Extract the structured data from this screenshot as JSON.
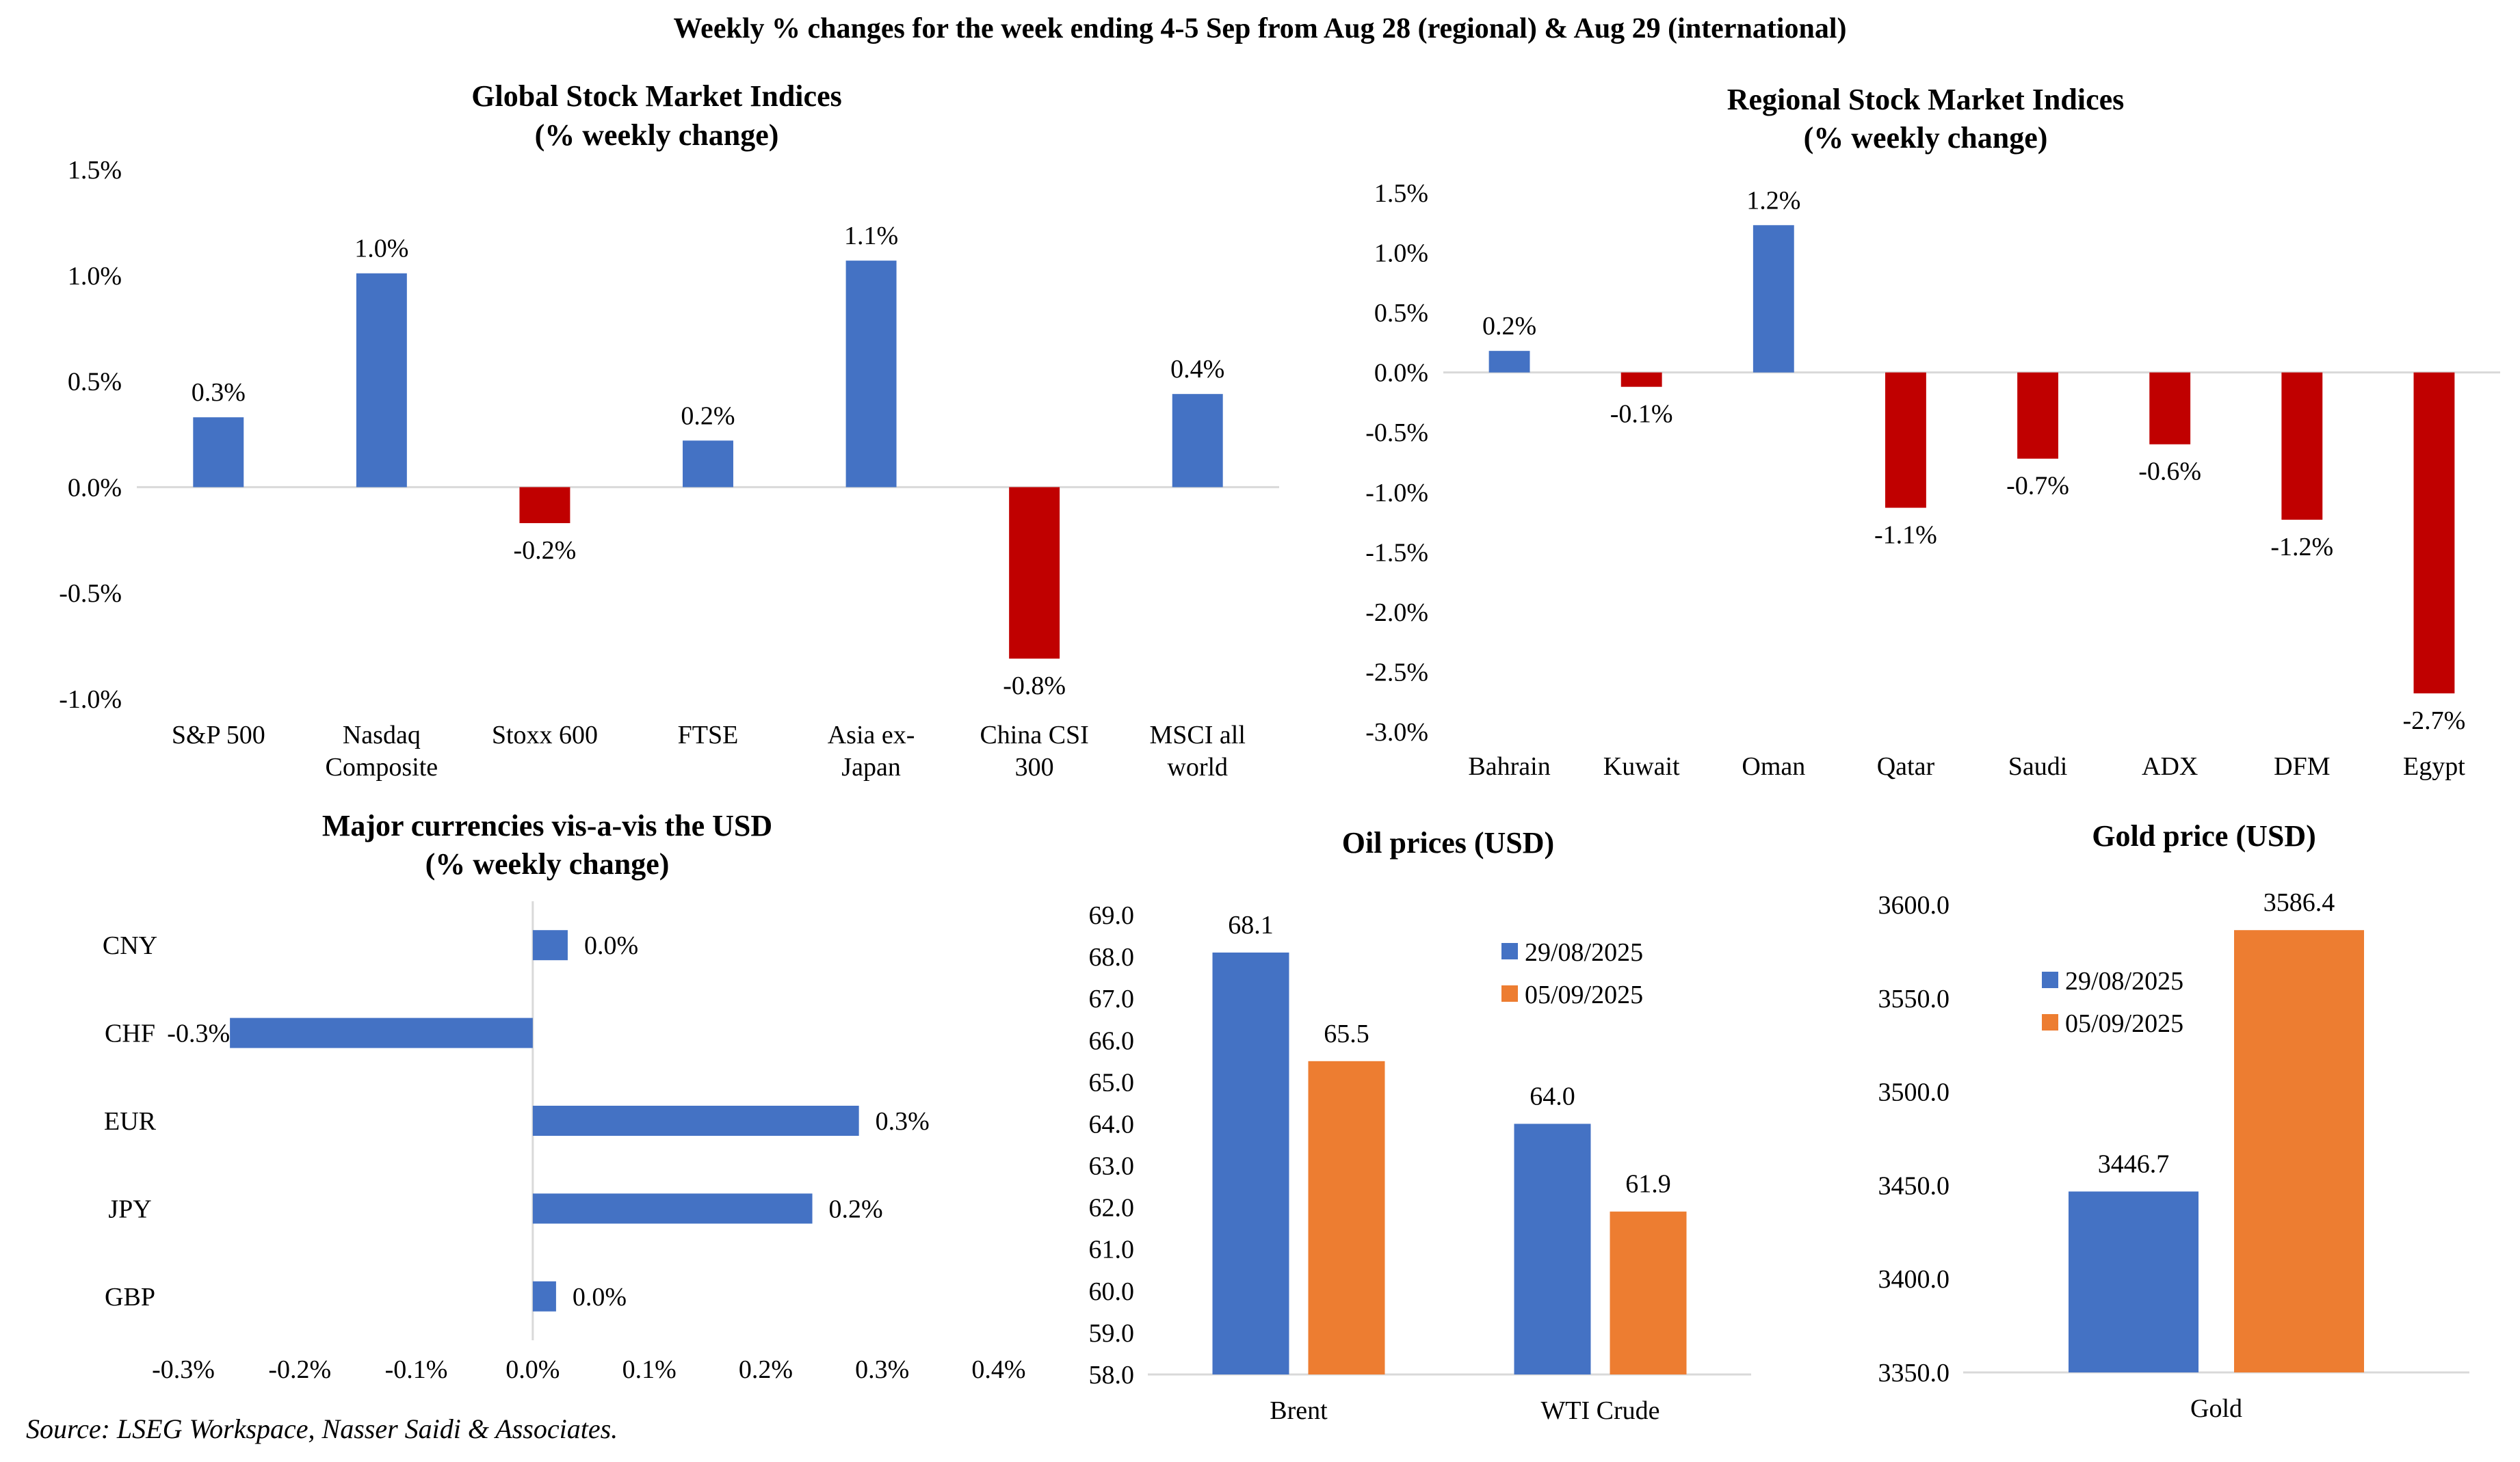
{
  "page": {
    "main_title": "Weekly % changes for the week ending 4-5 Sep from Aug 28 (regional) & Aug 29 (international)",
    "source": "Source: LSEG Workspace, Nasser Saidi & Associates."
  },
  "colors": {
    "positive": "#4472C4",
    "negative": "#C00000",
    "series_a": "#4472C4",
    "series_b": "#ED7D31"
  },
  "chart_data": [
    {
      "id": "global",
      "type": "bar",
      "title_line1": "Global Stock Market Indices",
      "title_line2": "(% weekly change)",
      "categories": [
        [
          "S&P 500"
        ],
        [
          "Nasdaq",
          "Composite"
        ],
        [
          "Stoxx 600"
        ],
        [
          "FTSE"
        ],
        [
          "Asia ex-",
          "Japan"
        ],
        [
          "China CSI",
          "300"
        ],
        [
          "MSCI all",
          "world"
        ]
      ],
      "values": [
        0.33,
        1.01,
        -0.17,
        0.22,
        1.07,
        -0.81,
        0.44
      ],
      "labels": [
        "0.3%",
        "1.0%",
        "-0.2%",
        "0.2%",
        "1.1%",
        "-0.8%",
        "0.4%"
      ],
      "ylim": [
        -1.0,
        1.5
      ],
      "yticks": [
        -1.0,
        -0.5,
        0.0,
        0.5,
        1.0,
        1.5
      ],
      "ytick_labels": [
        "-1.0%",
        "-0.5%",
        "0.0%",
        "0.5%",
        "1.0%",
        "1.5%"
      ],
      "grid": false
    },
    {
      "id": "regional",
      "type": "bar",
      "title_line1": "Regional Stock Market Indices",
      "title_line2": "(% weekly change)",
      "categories": [
        [
          "Bahrain"
        ],
        [
          "Kuwait"
        ],
        [
          "Oman"
        ],
        [
          "Qatar"
        ],
        [
          "Saudi"
        ],
        [
          "ADX"
        ],
        [
          "DFM"
        ],
        [
          "Egypt"
        ]
      ],
      "values": [
        0.18,
        -0.12,
        1.23,
        -1.13,
        -0.72,
        -0.6,
        -1.23,
        -2.68
      ],
      "labels": [
        "0.2%",
        "-0.1%",
        "1.2%",
        "-1.1%",
        "-0.7%",
        "-0.6%",
        "-1.2%",
        "-2.7%"
      ],
      "ylim": [
        -3.0,
        1.5
      ],
      "yticks": [
        -3.0,
        -2.5,
        -2.0,
        -1.5,
        -1.0,
        -0.5,
        0.0,
        0.5,
        1.0,
        1.5
      ],
      "ytick_labels": [
        "-3.0%",
        "-2.5%",
        "-2.0%",
        "-1.5%",
        "-1.0%",
        "-0.5%",
        "0.0%",
        "0.5%",
        "1.0%",
        "1.5%"
      ],
      "grid": false
    },
    {
      "id": "currencies",
      "type": "bar",
      "orientation": "horizontal",
      "title_line1": "Major currencies vis-a-vis the USD",
      "title_line2": "(% weekly change)",
      "categories": [
        "CNY",
        "CHF",
        "EUR",
        "JPY",
        "GBP"
      ],
      "values": [
        0.03,
        -0.26,
        0.28,
        0.24,
        0.02
      ],
      "labels": [
        "0.0%",
        "-0.3%",
        "0.3%",
        "0.2%",
        "0.0%"
      ],
      "xlim": [
        -0.3,
        0.4
      ],
      "xticks": [
        -0.3,
        -0.2,
        -0.1,
        0.0,
        0.1,
        0.2,
        0.3,
        0.4
      ],
      "xtick_labels": [
        "-0.3%",
        "-0.2%",
        "-0.1%",
        "0.0%",
        "0.1%",
        "0.2%",
        "0.3%",
        "0.4%"
      ],
      "grid": false
    },
    {
      "id": "oil",
      "type": "bar",
      "title_line1": "Oil prices (USD)",
      "categories": [
        "Brent",
        "WTI Crude"
      ],
      "series": [
        {
          "name": "29/08/2025",
          "values": [
            68.1,
            64.0
          ],
          "labels": [
            "68.1",
            "64.0"
          ]
        },
        {
          "name": "05/09/2025",
          "values": [
            65.5,
            61.9
          ],
          "labels": [
            "65.5",
            "61.9"
          ]
        }
      ],
      "ylim": [
        58.0,
        69.0
      ],
      "yticks": [
        58.0,
        59.0,
        60.0,
        61.0,
        62.0,
        63.0,
        64.0,
        65.0,
        66.0,
        67.0,
        68.0,
        69.0
      ],
      "ytick_labels": [
        "58.0",
        "59.0",
        "60.0",
        "61.0",
        "62.0",
        "63.0",
        "64.0",
        "65.0",
        "66.0",
        "67.0",
        "68.0",
        "69.0"
      ],
      "legend": "top-right",
      "grid": false
    },
    {
      "id": "gold",
      "type": "bar",
      "title_line1": "Gold price (USD)",
      "categories": [
        "Gold"
      ],
      "series": [
        {
          "name": "29/08/2025",
          "values": [
            3446.7
          ],
          "labels": [
            "3446.7"
          ]
        },
        {
          "name": "05/09/2025",
          "values": [
            3586.4
          ],
          "labels": [
            "3586.4"
          ]
        }
      ],
      "ylim": [
        3350.0,
        3600.0
      ],
      "yticks": [
        3350.0,
        3400.0,
        3450.0,
        3500.0,
        3550.0,
        3600.0
      ],
      "ytick_labels": [
        "3350.0",
        "3400.0",
        "3450.0",
        "3500.0",
        "3550.0",
        "3600.0"
      ],
      "legend": "top-left",
      "grid": false
    }
  ]
}
